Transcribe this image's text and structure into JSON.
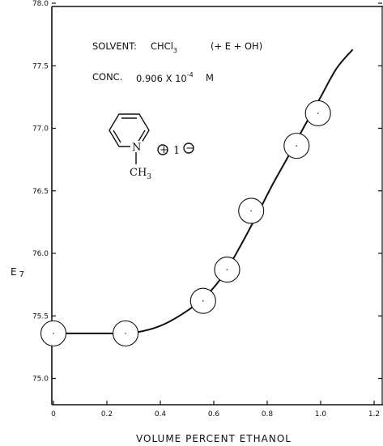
{
  "chart_data": {
    "type": "scatter",
    "xlabel": "VOLUME  PERCENT  ETHANOL",
    "ylabel": "E",
    "ylabel_sub": "7",
    "xlim": [
      0,
      1.2
    ],
    "ylim": [
      74.75,
      78.3
    ],
    "x_ticks": [
      {
        "v": 0,
        "label": "0"
      },
      {
        "v": 0.2,
        "label": "0.2"
      },
      {
        "v": 0.4,
        "label": "0.4"
      },
      {
        "v": 0.6,
        "label": "0.6"
      },
      {
        "v": 0.8,
        "label": "0.8"
      },
      {
        "v": 1.0,
        "label": "1.0"
      },
      {
        "v": 1.2,
        "label": "1.2"
      }
    ],
    "y_ticks": [
      {
        "v": 75.0,
        "label": "75.0"
      },
      {
        "v": 75.5,
        "label": "75.5"
      },
      {
        "v": 76.0,
        "label": "76.0"
      },
      {
        "v": 76.5,
        "label": "76.5"
      },
      {
        "v": 77.0,
        "label": "77.0"
      },
      {
        "v": 77.5,
        "label": "77.5"
      },
      {
        "v": 78.0,
        "label": "78.0"
      }
    ],
    "points": [
      {
        "x": 0.0,
        "y": 75.36
      },
      {
        "x": 0.27,
        "y": 75.36
      },
      {
        "x": 0.56,
        "y": 75.62
      },
      {
        "x": 0.65,
        "y": 75.87
      },
      {
        "x": 0.74,
        "y": 76.34
      },
      {
        "x": 0.91,
        "y": 76.86
      },
      {
        "x": 0.99,
        "y": 77.12
      }
    ],
    "fit_curve": [
      [
        0.0,
        75.36
      ],
      [
        0.1,
        75.36
      ],
      [
        0.2,
        75.36
      ],
      [
        0.3,
        75.365
      ],
      [
        0.4,
        75.42
      ],
      [
        0.5,
        75.54
      ],
      [
        0.58,
        75.68
      ],
      [
        0.64,
        75.84
      ],
      [
        0.7,
        76.06
      ],
      [
        0.76,
        76.3
      ],
      [
        0.82,
        76.55
      ],
      [
        0.88,
        76.78
      ],
      [
        0.94,
        77.02
      ],
      [
        1.0,
        77.25
      ],
      [
        1.06,
        77.48
      ],
      [
        1.12,
        77.63
      ]
    ],
    "annotations": {
      "solvent_label": "SOLVENT:",
      "solvent_formula": "CHCl",
      "solvent_formula_sub": "3",
      "solvent_note": "(+ E + OH)",
      "conc_label": "CONC.",
      "conc_value": "0.906 X 10",
      "conc_exp": "-4",
      "conc_unit": "M",
      "structure_n": "N",
      "structure_ch3": "CH",
      "structure_ch3_sub": "3",
      "structure_iodide": "1",
      "plus_sign": "+",
      "minus_sign": "−"
    },
    "grid": false
  }
}
